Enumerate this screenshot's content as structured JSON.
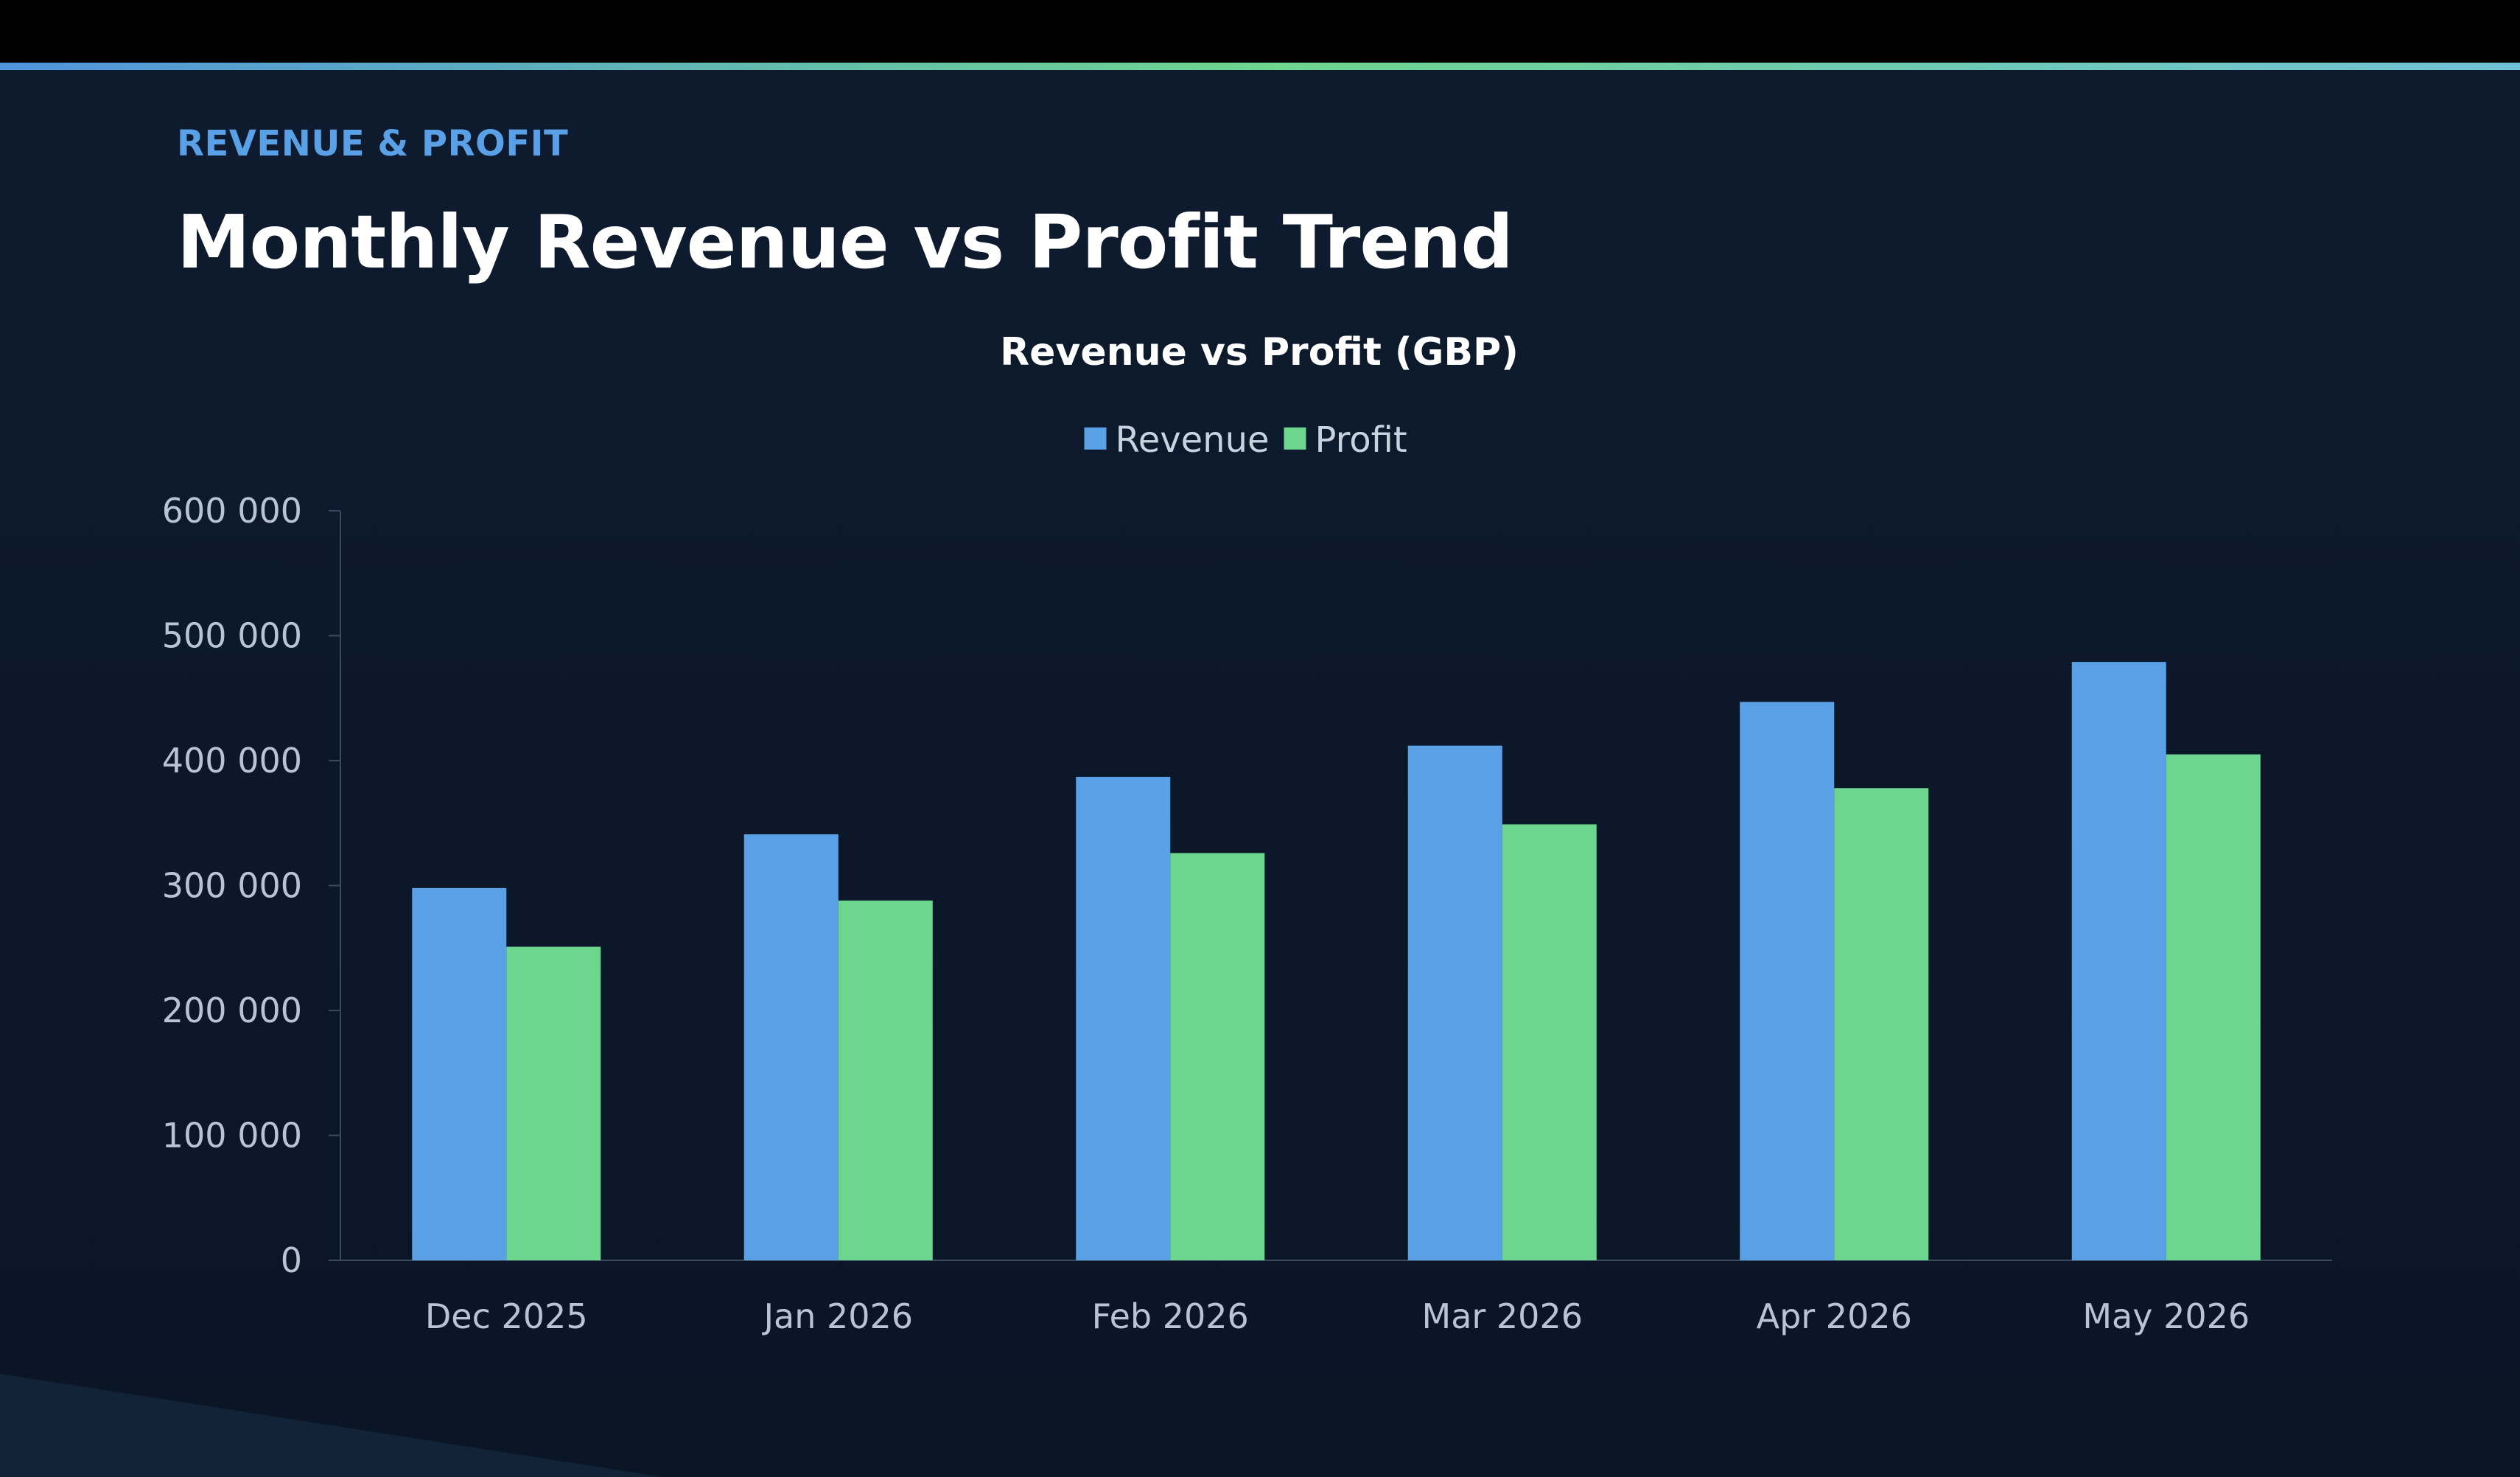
{
  "header": {
    "eyebrow": "REVENUE & PROFIT",
    "title": "Monthly Revenue vs Profit Trend"
  },
  "colors": {
    "background": "#0e1b2e",
    "revenue": "#5aa0e6",
    "profit": "#6dd68e",
    "axis": "#3a4a5e",
    "tick_text": "#b8c4d4",
    "eyebrow": "#5aa0e6"
  },
  "chart_data": {
    "type": "bar",
    "title": "Revenue vs Profit (GBP)",
    "categories": [
      "Dec 2025",
      "Jan 2026",
      "Feb 2026",
      "Mar 2026",
      "Apr 2026",
      "May 2026"
    ],
    "series": [
      {
        "name": "Revenue",
        "color": "#5aa0e6",
        "values": [
          298000,
          341000,
          387000,
          412000,
          447000,
          479000
        ]
      },
      {
        "name": "Profit",
        "color": "#6dd68e",
        "values": [
          251000,
          288000,
          326000,
          349000,
          378000,
          405000
        ]
      }
    ],
    "ylim": [
      0,
      600000
    ],
    "yticks": [
      0,
      100000,
      200000,
      300000,
      400000,
      500000,
      600000
    ],
    "ytick_labels": [
      "0",
      "100 000",
      "200 000",
      "300 000",
      "400 000",
      "500 000",
      "600 000"
    ],
    "xlabel": "",
    "ylabel": "",
    "legend_position": "top-center",
    "grid": false
  }
}
